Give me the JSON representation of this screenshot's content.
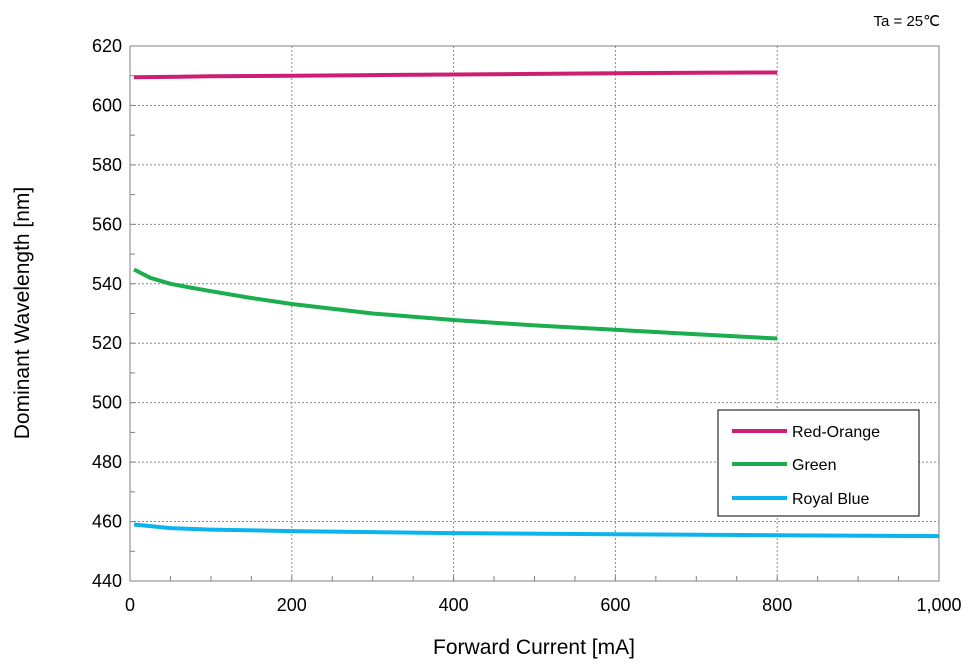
{
  "chart_data": {
    "type": "line",
    "title": "",
    "annotation": "Ta = 25℃",
    "xlabel": "Forward Current [mA]",
    "ylabel": "Dominant  Wavelength [nm]",
    "xlim": [
      0,
      1000
    ],
    "ylim": [
      440,
      620
    ],
    "x_ticks": [
      0,
      200,
      400,
      600,
      800,
      1000
    ],
    "x_tick_labels": [
      "0",
      "200",
      "400",
      "600",
      "800",
      "1,000"
    ],
    "y_ticks": [
      440,
      460,
      480,
      500,
      520,
      540,
      560,
      580,
      600,
      620
    ],
    "y_tick_labels": [
      "440",
      "460",
      "480",
      "500",
      "520",
      "540",
      "560",
      "580",
      "600",
      "620"
    ],
    "x_minor_step": 50,
    "y_minor_step": 10,
    "grid": true,
    "legend_position": "bottom-right",
    "series": [
      {
        "name": "Red-Orange",
        "color": "#cc1f73",
        "x": [
          5,
          50,
          100,
          200,
          300,
          400,
          500,
          600,
          700,
          800
        ],
        "y": [
          609.5,
          609.6,
          609.8,
          610.0,
          610.2,
          610.4,
          610.6,
          610.8,
          611.0,
          611.1
        ]
      },
      {
        "name": "Green",
        "color": "#1cad4e",
        "x": [
          5,
          25,
          50,
          75,
          100,
          150,
          200,
          300,
          400,
          500,
          600,
          700,
          800
        ],
        "y": [
          544.8,
          542.0,
          540.0,
          538.7,
          537.5,
          535.2,
          533.2,
          530.0,
          527.8,
          526.0,
          524.5,
          523.0,
          521.6
        ]
      },
      {
        "name": "Royal Blue",
        "color": "#0bb4ec",
        "x": [
          5,
          50,
          100,
          200,
          400,
          600,
          800,
          1000
        ],
        "y": [
          459.0,
          457.8,
          457.3,
          456.8,
          456.1,
          455.7,
          455.4,
          455.1
        ]
      }
    ]
  }
}
